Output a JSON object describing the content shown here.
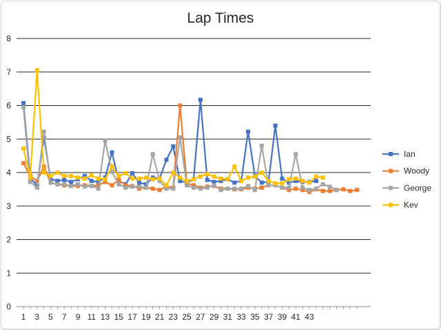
{
  "chart_data": {
    "type": "line",
    "title": "Lap Times",
    "xlabel": "",
    "ylabel": "",
    "ylim": [
      0,
      8
    ],
    "yticks": [
      0,
      1,
      2,
      3,
      4,
      5,
      6,
      7,
      8
    ],
    "x": [
      1,
      2,
      3,
      4,
      5,
      6,
      7,
      8,
      9,
      10,
      11,
      12,
      13,
      14,
      15,
      16,
      17,
      18,
      19,
      20,
      21,
      22,
      23,
      24,
      25,
      26,
      27,
      28,
      29,
      30,
      31,
      32,
      33,
      34,
      35,
      36,
      37,
      38,
      39,
      40,
      41,
      42,
      43,
      44,
      45,
      46,
      47,
      48,
      49,
      50
    ],
    "xtick_labels": [
      "1",
      "3",
      "5",
      "7",
      "9",
      "11",
      "13",
      "15",
      "17",
      "19",
      "21",
      "23",
      "25",
      "27",
      "29",
      "31",
      "33",
      "35",
      "37",
      "39",
      "41",
      "43"
    ],
    "grid": "horizontal",
    "legend_position": "right",
    "series": [
      {
        "name": "Ian",
        "color": "#4472c4",
        "values": [
          6.07,
          3.85,
          3.6,
          5.05,
          3.8,
          3.75,
          3.78,
          3.72,
          3.8,
          3.9,
          3.75,
          3.72,
          3.85,
          4.6,
          3.75,
          3.65,
          3.98,
          3.7,
          3.65,
          3.85,
          3.82,
          4.38,
          4.78,
          3.75,
          3.7,
          3.8,
          6.17,
          3.78,
          3.72,
          3.75,
          3.8,
          3.7,
          3.75,
          5.22,
          3.9,
          3.7,
          3.72,
          5.4,
          3.82,
          3.7,
          3.75,
          3.72,
          3.72,
          3.75,
          null,
          null,
          null,
          null,
          null,
          null
        ]
      },
      {
        "name": "Woody",
        "color": "#ed7d31",
        "values": [
          4.28,
          3.9,
          3.75,
          4.18,
          3.7,
          3.65,
          3.62,
          3.6,
          3.6,
          3.62,
          3.6,
          3.62,
          3.72,
          3.62,
          3.78,
          3.62,
          3.6,
          3.52,
          3.55,
          3.52,
          3.48,
          3.58,
          3.55,
          6.0,
          3.68,
          3.62,
          3.55,
          3.58,
          3.6,
          3.52,
          3.52,
          3.5,
          3.5,
          3.55,
          3.52,
          3.55,
          3.62,
          3.62,
          3.55,
          3.48,
          3.52,
          3.48,
          3.42,
          3.5,
          3.45,
          3.45,
          3.48,
          3.5,
          3.45,
          3.48
        ]
      },
      {
        "name": "George",
        "color": "#a5a5a5",
        "values": [
          5.95,
          3.72,
          3.55,
          5.22,
          3.7,
          3.65,
          3.65,
          3.6,
          3.65,
          3.58,
          3.6,
          3.52,
          4.95,
          4.02,
          3.65,
          3.55,
          3.58,
          3.58,
          3.55,
          4.55,
          3.75,
          3.52,
          3.52,
          5.05,
          3.62,
          3.55,
          3.52,
          3.55,
          3.62,
          3.48,
          3.52,
          3.52,
          3.52,
          3.6,
          3.48,
          4.8,
          3.62,
          3.62,
          3.55,
          3.55,
          4.55,
          3.55,
          3.48,
          3.52,
          3.65,
          3.58,
          3.48,
          null,
          null,
          null
        ]
      },
      {
        "name": "Kev",
        "color": "#ffc000",
        "values": [
          4.72,
          3.85,
          7.05,
          4.0,
          3.9,
          4.0,
          3.9,
          3.9,
          3.85,
          3.82,
          3.92,
          3.82,
          3.8,
          4.18,
          3.9,
          3.98,
          3.82,
          3.82,
          3.85,
          3.8,
          3.82,
          3.62,
          4.0,
          3.85,
          3.75,
          3.8,
          3.88,
          3.95,
          3.88,
          3.82,
          3.8,
          4.18,
          3.75,
          3.85,
          3.88,
          4.0,
          3.75,
          3.68,
          3.68,
          3.8,
          3.82,
          3.75,
          3.7,
          3.88,
          3.85,
          null,
          null,
          null,
          null,
          null
        ]
      }
    ]
  }
}
